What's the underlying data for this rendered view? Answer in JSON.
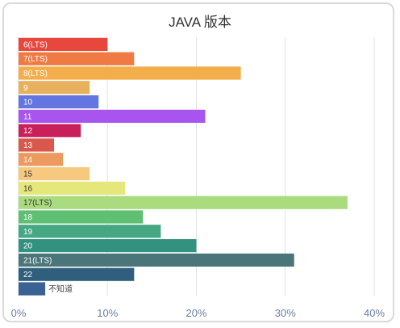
{
  "chart_data": {
    "type": "bar",
    "orientation": "horizontal",
    "title": "JAVA 版本",
    "xlabel": "",
    "ylabel": "",
    "xlim": [
      0,
      40
    ],
    "x_ticks": [
      "0%",
      "10%",
      "20%",
      "30%",
      "40%"
    ],
    "grid": true,
    "categories": [
      "6(LTS)",
      "7(LTS)",
      "8(LTS)",
      "9",
      "10",
      "11",
      "12",
      "13",
      "14",
      "15",
      "16",
      "17(LTS)",
      "18",
      "19",
      "20",
      "21(LTS)",
      "22",
      "不知道"
    ],
    "values": [
      10,
      13,
      25,
      8,
      9,
      21,
      7,
      4,
      5,
      8,
      12,
      37,
      14,
      16,
      20,
      31,
      13,
      3
    ],
    "colors": [
      "#e8473d",
      "#ef7a43",
      "#f3ae4b",
      "#e8b15e",
      "#6275e0",
      "#a855f0",
      "#c91f5a",
      "#d9584e",
      "#ec9a5f",
      "#f6c97f",
      "#e6e77a",
      "#aadc7f",
      "#5fbf73",
      "#45a784",
      "#33927f",
      "#4a7679",
      "#2f5f7d",
      "#3b6294"
    ],
    "label_colors": [
      "#ffffff",
      "#ffffff",
      "#ffffff",
      "#ffffff",
      "#ffffff",
      "#ffffff",
      "#ffffff",
      "#ffffff",
      "#ffffff",
      "#333333",
      "#333333",
      "#333333",
      "#ffffff",
      "#ffffff",
      "#ffffff",
      "#ffffff",
      "#ffffff",
      "#444444"
    ]
  }
}
